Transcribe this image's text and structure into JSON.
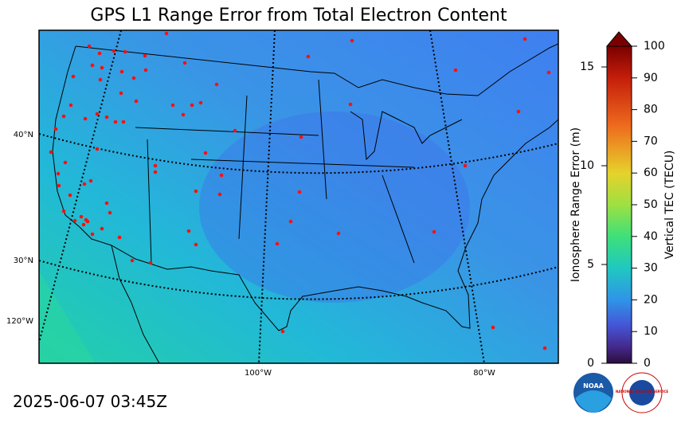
{
  "title": "GPS L1 Range Error from Total Electron Content",
  "timestamp": "2025-06-07 03:45Z",
  "map": {
    "lat_labels": [
      "40°N",
      "30°N"
    ],
    "lon_labels": [
      "120°W",
      "100°W",
      "80°W"
    ]
  },
  "colorbar": {
    "error_label": "Ionosphere Range Error (m)",
    "error_lim": [
      0,
      16.05
    ],
    "error_ticks": [
      0,
      5,
      10,
      15
    ],
    "tec_label": "Vertical TEC (TECU)",
    "tec_lim": [
      0,
      100
    ],
    "tec_ticks": [
      0,
      10,
      20,
      30,
      40,
      50,
      60,
      70,
      80,
      90,
      100
    ]
  },
  "logos": {
    "noaa": "NOAA",
    "nws": "NATIONAL WEATHER SERVICE"
  }
}
